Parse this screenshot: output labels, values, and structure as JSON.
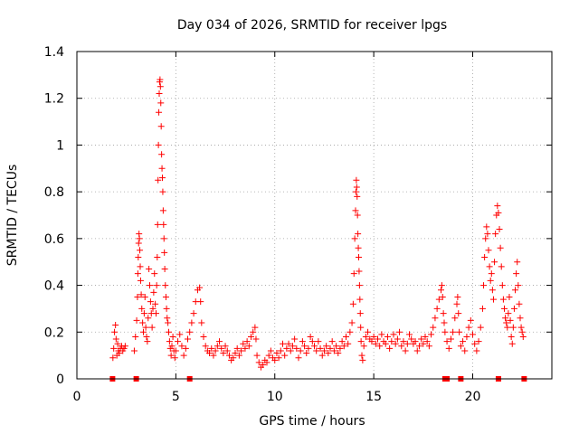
{
  "chart_data": {
    "type": "scatter",
    "title": "Day 034 of 2026, SRMTID for receiver lpgs",
    "xlabel": "GPS time / hours",
    "ylabel": "SRMTID / TECUs",
    "xlim": [
      0,
      24
    ],
    "ylim": [
      0,
      1.4
    ],
    "xticks": [
      0,
      5,
      10,
      15,
      20
    ],
    "xtick_labels": [
      "0",
      "5",
      "10",
      "15",
      "20"
    ],
    "yticks": [
      0,
      0.2,
      0.4,
      0.6,
      0.8,
      1.0,
      1.2,
      1.4
    ],
    "ytick_labels": [
      "0",
      "0.2",
      "0.4",
      "0.6",
      "0.8",
      "1",
      "1.2",
      "1.4"
    ],
    "grid": true,
    "marker": "+",
    "color": "#ff0000",
    "series": [
      {
        "name": "SRMTID",
        "points": [
          [
            1.82,
            0.09
          ],
          [
            1.86,
            0.13
          ],
          [
            1.9,
            0.2
          ],
          [
            1.95,
            0.23
          ],
          [
            1.98,
            0.17
          ],
          [
            2.02,
            0.1
          ],
          [
            2.06,
            0.15
          ],
          [
            2.1,
            0.12
          ],
          [
            2.14,
            0.11
          ],
          [
            2.2,
            0.13
          ],
          [
            2.26,
            0.14
          ],
          [
            2.32,
            0.12
          ],
          [
            2.38,
            0.13
          ],
          [
            2.44,
            0.14
          ],
          [
            2.9,
            0.12
          ],
          [
            2.96,
            0.18
          ],
          [
            3.02,
            0.25
          ],
          [
            3.06,
            0.35
          ],
          [
            3.08,
            0.45
          ],
          [
            3.1,
            0.52
          ],
          [
            3.12,
            0.58
          ],
          [
            3.14,
            0.62
          ],
          [
            3.16,
            0.6
          ],
          [
            3.18,
            0.55
          ],
          [
            3.2,
            0.48
          ],
          [
            3.22,
            0.42
          ],
          [
            3.25,
            0.36
          ],
          [
            3.28,
            0.3
          ],
          [
            3.32,
            0.24
          ],
          [
            3.36,
            0.2
          ],
          [
            3.4,
            0.28
          ],
          [
            3.44,
            0.35
          ],
          [
            3.48,
            0.22
          ],
          [
            3.52,
            0.18
          ],
          [
            3.56,
            0.16
          ],
          [
            3.6,
            0.26
          ],
          [
            3.64,
            0.47
          ],
          [
            3.68,
            0.4
          ],
          [
            3.72,
            0.33
          ],
          [
            3.76,
            0.28
          ],
          [
            3.8,
            0.22
          ],
          [
            3.84,
            0.3
          ],
          [
            3.88,
            0.37
          ],
          [
            3.92,
            0.45
          ],
          [
            3.96,
            0.32
          ],
          [
            4.0,
            0.28
          ],
          [
            4.03,
            0.4
          ],
          [
            4.06,
            0.52
          ],
          [
            4.08,
            0.66
          ],
          [
            4.1,
            0.85
          ],
          [
            4.12,
            1.0
          ],
          [
            4.14,
            1.14
          ],
          [
            4.16,
            1.22
          ],
          [
            4.18,
            1.27
          ],
          [
            4.2,
            1.28
          ],
          [
            4.22,
            1.25
          ],
          [
            4.24,
            1.18
          ],
          [
            4.26,
            1.08
          ],
          [
            4.28,
            0.96
          ],
          [
            4.3,
            0.9
          ],
          [
            4.32,
            0.86
          ],
          [
            4.34,
            0.8
          ],
          [
            4.36,
            0.72
          ],
          [
            4.38,
            0.66
          ],
          [
            4.4,
            0.6
          ],
          [
            4.42,
            0.54
          ],
          [
            4.44,
            0.47
          ],
          [
            4.47,
            0.4
          ],
          [
            4.5,
            0.35
          ],
          [
            4.53,
            0.3
          ],
          [
            4.56,
            0.26
          ],
          [
            4.6,
            0.24
          ],
          [
            4.64,
            0.2
          ],
          [
            4.68,
            0.16
          ],
          [
            4.72,
            0.13
          ],
          [
            4.76,
            0.1
          ],
          [
            4.8,
            0.14
          ],
          [
            4.85,
            0.18
          ],
          [
            4.9,
            0.12
          ],
          [
            4.95,
            0.09
          ],
          [
            5.0,
            0.12
          ],
          [
            5.1,
            0.16
          ],
          [
            5.2,
            0.19
          ],
          [
            5.3,
            0.14
          ],
          [
            5.4,
            0.1
          ],
          [
            5.5,
            0.13
          ],
          [
            5.6,
            0.17
          ],
          [
            5.7,
            0.2
          ],
          [
            5.8,
            0.24
          ],
          [
            5.9,
            0.28
          ],
          [
            6.0,
            0.33
          ],
          [
            6.1,
            0.38
          ],
          [
            6.2,
            0.39
          ],
          [
            6.25,
            0.33
          ],
          [
            6.3,
            0.24
          ],
          [
            6.4,
            0.18
          ],
          [
            6.5,
            0.14
          ],
          [
            6.6,
            0.12
          ],
          [
            6.7,
            0.11
          ],
          [
            6.8,
            0.13
          ],
          [
            6.9,
            0.1
          ],
          [
            7.0,
            0.12
          ],
          [
            7.1,
            0.14
          ],
          [
            7.2,
            0.16
          ],
          [
            7.3,
            0.13
          ],
          [
            7.4,
            0.11
          ],
          [
            7.5,
            0.14
          ],
          [
            7.6,
            0.12
          ],
          [
            7.7,
            0.1
          ],
          [
            7.8,
            0.08
          ],
          [
            7.9,
            0.09
          ],
          [
            8.0,
            0.11
          ],
          [
            8.1,
            0.13
          ],
          [
            8.2,
            0.1
          ],
          [
            8.3,
            0.12
          ],
          [
            8.4,
            0.15
          ],
          [
            8.5,
            0.13
          ],
          [
            8.6,
            0.16
          ],
          [
            8.7,
            0.14
          ],
          [
            8.8,
            0.18
          ],
          [
            8.9,
            0.2
          ],
          [
            9.0,
            0.22
          ],
          [
            9.05,
            0.17
          ],
          [
            9.1,
            0.1
          ],
          [
            9.2,
            0.07
          ],
          [
            9.3,
            0.05
          ],
          [
            9.4,
            0.06
          ],
          [
            9.5,
            0.08
          ],
          [
            9.6,
            0.07
          ],
          [
            9.7,
            0.1
          ],
          [
            9.8,
            0.12
          ],
          [
            9.9,
            0.09
          ],
          [
            10.0,
            0.08
          ],
          [
            10.1,
            0.11
          ],
          [
            10.2,
            0.09
          ],
          [
            10.3,
            0.12
          ],
          [
            10.4,
            0.15
          ],
          [
            10.5,
            0.1
          ],
          [
            10.6,
            0.13
          ],
          [
            10.7,
            0.15
          ],
          [
            10.8,
            0.12
          ],
          [
            10.9,
            0.14
          ],
          [
            11.0,
            0.17
          ],
          [
            11.1,
            0.13
          ],
          [
            11.2,
            0.09
          ],
          [
            11.3,
            0.12
          ],
          [
            11.4,
            0.16
          ],
          [
            11.5,
            0.14
          ],
          [
            11.6,
            0.11
          ],
          [
            11.7,
            0.13
          ],
          [
            11.8,
            0.18
          ],
          [
            11.9,
            0.16
          ],
          [
            12.0,
            0.14
          ],
          [
            12.1,
            0.12
          ],
          [
            12.2,
            0.16
          ],
          [
            12.3,
            0.13
          ],
          [
            12.4,
            0.1
          ],
          [
            12.5,
            0.12
          ],
          [
            12.6,
            0.14
          ],
          [
            12.7,
            0.11
          ],
          [
            12.8,
            0.13
          ],
          [
            12.9,
            0.16
          ],
          [
            13.0,
            0.12
          ],
          [
            13.1,
            0.14
          ],
          [
            13.2,
            0.11
          ],
          [
            13.3,
            0.13
          ],
          [
            13.4,
            0.16
          ],
          [
            13.5,
            0.14
          ],
          [
            13.6,
            0.18
          ],
          [
            13.7,
            0.15
          ],
          [
            13.8,
            0.2
          ],
          [
            13.9,
            0.24
          ],
          [
            13.96,
            0.32
          ],
          [
            14.0,
            0.45
          ],
          [
            14.04,
            0.6
          ],
          [
            14.08,
            0.72
          ],
          [
            14.1,
            0.8
          ],
          [
            14.12,
            0.85
          ],
          [
            14.14,
            0.82
          ],
          [
            14.16,
            0.78
          ],
          [
            14.18,
            0.7
          ],
          [
            14.2,
            0.62
          ],
          [
            14.22,
            0.56
          ],
          [
            14.24,
            0.52
          ],
          [
            14.26,
            0.46
          ],
          [
            14.28,
            0.4
          ],
          [
            14.3,
            0.34
          ],
          [
            14.32,
            0.28
          ],
          [
            14.34,
            0.22
          ],
          [
            14.36,
            0.16
          ],
          [
            14.4,
            0.1
          ],
          [
            14.44,
            0.08
          ],
          [
            14.5,
            0.14
          ],
          [
            14.6,
            0.18
          ],
          [
            14.7,
            0.2
          ],
          [
            14.8,
            0.17
          ],
          [
            14.9,
            0.16
          ],
          [
            15.0,
            0.18
          ],
          [
            15.1,
            0.15
          ],
          [
            15.2,
            0.17
          ],
          [
            15.3,
            0.14
          ],
          [
            15.4,
            0.19
          ],
          [
            15.5,
            0.16
          ],
          [
            15.6,
            0.15
          ],
          [
            15.7,
            0.18
          ],
          [
            15.8,
            0.13
          ],
          [
            15.9,
            0.16
          ],
          [
            16.0,
            0.19
          ],
          [
            16.1,
            0.15
          ],
          [
            16.2,
            0.17
          ],
          [
            16.3,
            0.2
          ],
          [
            16.4,
            0.14
          ],
          [
            16.5,
            0.16
          ],
          [
            16.6,
            0.12
          ],
          [
            16.7,
            0.15
          ],
          [
            16.8,
            0.19
          ],
          [
            16.9,
            0.17
          ],
          [
            17.0,
            0.15
          ],
          [
            17.1,
            0.16
          ],
          [
            17.2,
            0.12
          ],
          [
            17.3,
            0.14
          ],
          [
            17.4,
            0.17
          ],
          [
            17.5,
            0.15
          ],
          [
            17.6,
            0.18
          ],
          [
            17.7,
            0.16
          ],
          [
            17.8,
            0.14
          ],
          [
            17.9,
            0.19
          ],
          [
            18.0,
            0.22
          ],
          [
            18.1,
            0.26
          ],
          [
            18.2,
            0.3
          ],
          [
            18.3,
            0.34
          ],
          [
            18.4,
            0.38
          ],
          [
            18.44,
            0.4
          ],
          [
            18.48,
            0.35
          ],
          [
            18.52,
            0.28
          ],
          [
            18.56,
            0.24
          ],
          [
            18.6,
            0.2
          ],
          [
            18.7,
            0.16
          ],
          [
            18.8,
            0.13
          ],
          [
            18.9,
            0.17
          ],
          [
            19.0,
            0.2
          ],
          [
            19.1,
            0.26
          ],
          [
            19.2,
            0.32
          ],
          [
            19.24,
            0.35
          ],
          [
            19.28,
            0.28
          ],
          [
            19.32,
            0.2
          ],
          [
            19.4,
            0.14
          ],
          [
            19.5,
            0.16
          ],
          [
            19.6,
            0.12
          ],
          [
            19.7,
            0.18
          ],
          [
            19.8,
            0.22
          ],
          [
            19.9,
            0.25
          ],
          [
            20.0,
            0.19
          ],
          [
            20.1,
            0.15
          ],
          [
            20.2,
            0.12
          ],
          [
            20.3,
            0.16
          ],
          [
            20.4,
            0.22
          ],
          [
            20.5,
            0.3
          ],
          [
            20.55,
            0.4
          ],
          [
            20.6,
            0.52
          ],
          [
            20.65,
            0.6
          ],
          [
            20.7,
            0.65
          ],
          [
            20.75,
            0.62
          ],
          [
            20.8,
            0.55
          ],
          [
            20.85,
            0.48
          ],
          [
            20.9,
            0.42
          ],
          [
            20.95,
            0.45
          ],
          [
            21.0,
            0.38
          ],
          [
            21.05,
            0.34
          ],
          [
            21.1,
            0.5
          ],
          [
            21.15,
            0.62
          ],
          [
            21.2,
            0.7
          ],
          [
            21.25,
            0.74
          ],
          [
            21.3,
            0.71
          ],
          [
            21.35,
            0.64
          ],
          [
            21.4,
            0.56
          ],
          [
            21.45,
            0.48
          ],
          [
            21.5,
            0.4
          ],
          [
            21.55,
            0.34
          ],
          [
            21.6,
            0.3
          ],
          [
            21.65,
            0.26
          ],
          [
            21.7,
            0.24
          ],
          [
            21.75,
            0.22
          ],
          [
            21.8,
            0.28
          ],
          [
            21.85,
            0.35
          ],
          [
            21.9,
            0.25
          ],
          [
            21.95,
            0.18
          ],
          [
            22.0,
            0.15
          ],
          [
            22.05,
            0.22
          ],
          [
            22.1,
            0.3
          ],
          [
            22.15,
            0.38
          ],
          [
            22.2,
            0.45
          ],
          [
            22.25,
            0.5
          ],
          [
            22.3,
            0.4
          ],
          [
            22.35,
            0.32
          ],
          [
            22.4,
            0.26
          ],
          [
            22.45,
            0.22
          ],
          [
            22.5,
            0.2
          ],
          [
            22.55,
            0.18
          ]
        ]
      }
    ],
    "zero_markers_x": [
      1.8,
      3.0,
      5.7,
      18.6,
      18.7,
      19.4,
      21.3,
      22.6
    ]
  }
}
